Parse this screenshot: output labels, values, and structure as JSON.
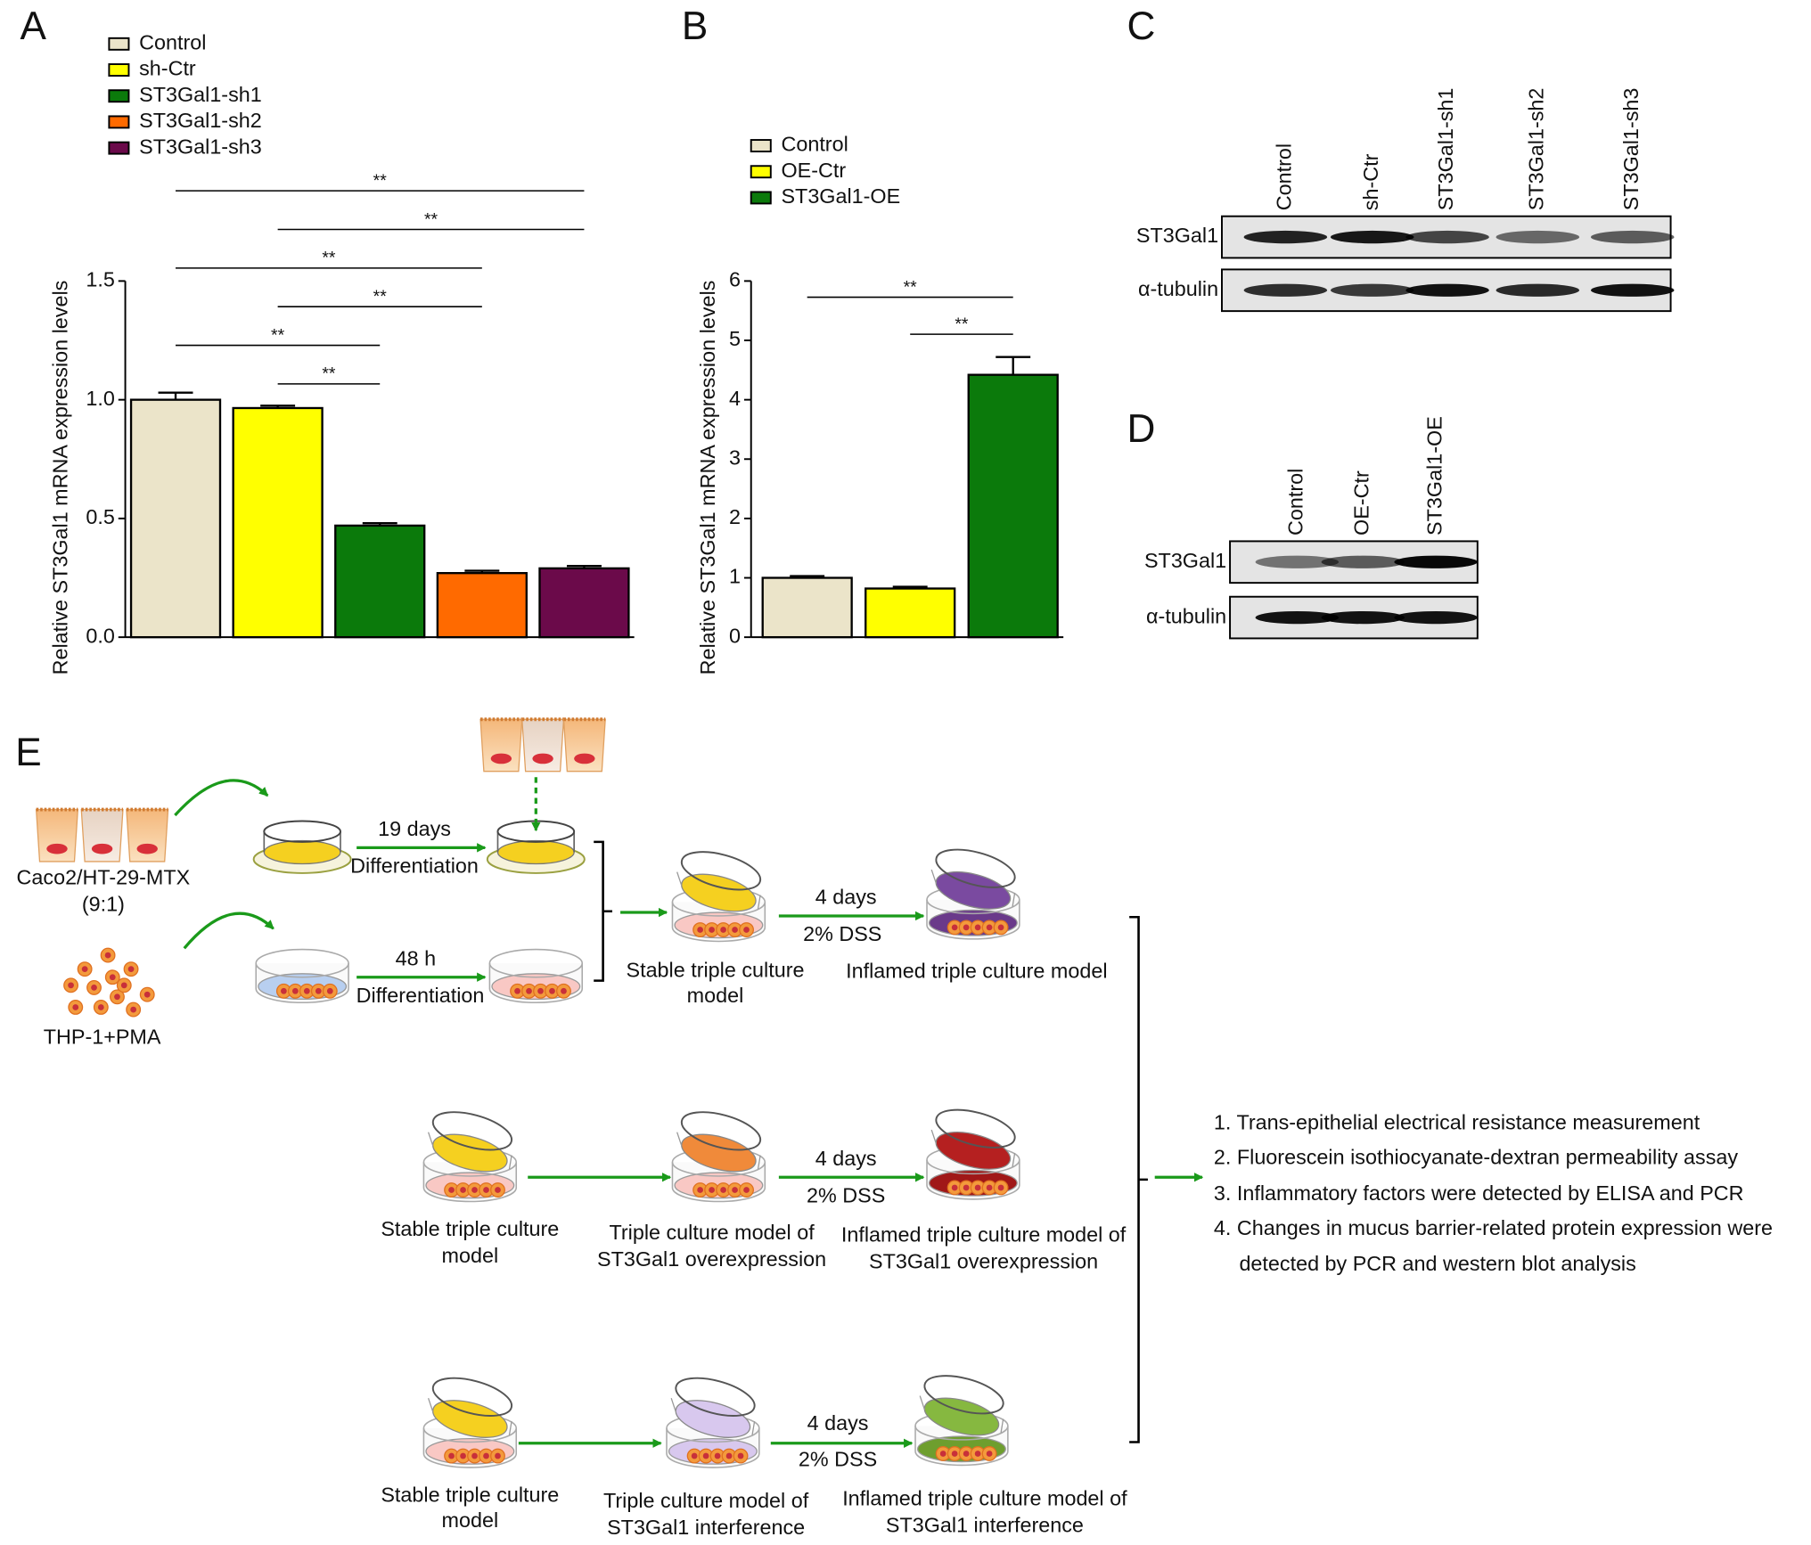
{
  "chart_data": [
    {
      "type": "bar",
      "panel": "A",
      "ylabel": "Relative ST3Gal1 mRNA expression levels",
      "series": [
        {
          "name": "Control",
          "color": "#ebe4c9",
          "values": [
            1.0
          ],
          "errors": [
            0.03
          ]
        },
        {
          "name": "sh-Ctr",
          "color": "#ffff00",
          "values": [
            0.965
          ],
          "errors": [
            0.01
          ]
        },
        {
          "name": "ST3Gal1-sh1",
          "color": "#0b7a0b",
          "values": [
            0.47
          ],
          "errors": [
            0.01
          ]
        },
        {
          "name": "ST3Gal1-sh2",
          "color": "#ff6a00",
          "values": [
            0.27
          ],
          "errors": [
            0.01
          ]
        },
        {
          "name": "ST3Gal1-sh3",
          "color": "#6b0a4a",
          "values": [
            0.29
          ],
          "errors": [
            0.01
          ]
        }
      ],
      "ylim": [
        0,
        1.5
      ],
      "yticks": [
        {
          "value": 0,
          "label": "0.0"
        },
        0.5,
        {
          "value": 1,
          "label": "1.0"
        },
        1.5
      ],
      "significance": [
        {
          "between": [
            1,
            2
          ],
          "label": "**"
        },
        {
          "between": [
            0,
            2
          ],
          "label": "**"
        },
        {
          "between": [
            1,
            3
          ],
          "label": "**"
        },
        {
          "between": [
            0,
            3
          ],
          "label": "**"
        },
        {
          "between": [
            1,
            4
          ],
          "label": "**"
        },
        {
          "between": [
            0,
            4
          ],
          "label": "**"
        }
      ]
    },
    {
      "type": "bar",
      "panel": "B",
      "ylabel": "Relative ST3Gal1 mRNA expression levels",
      "series": [
        {
          "name": "Control",
          "color": "#ebe4c9",
          "values": [
            1.0
          ],
          "errors": [
            0.03
          ]
        },
        {
          "name": "OE-Ctr",
          "color": "#ffff00",
          "values": [
            0.82
          ],
          "errors": [
            0.03
          ]
        },
        {
          "name": "ST3Gal1-OE",
          "color": "#0b7a0b",
          "values": [
            4.42
          ],
          "errors": [
            0.3
          ]
        }
      ],
      "ylim": [
        0,
        6
      ],
      "yticks": [
        0,
        1,
        2,
        3,
        4,
        5,
        6
      ],
      "significance": [
        {
          "between": [
            1,
            2
          ],
          "label": "**"
        },
        {
          "between": [
            0,
            2
          ],
          "label": "**"
        }
      ]
    }
  ],
  "blots": [
    {
      "panel": "C",
      "lanes": [
        "Control",
        "sh-Ctr",
        "ST3Gal1-sh1",
        "ST3Gal1-sh2",
        "ST3Gal1-sh3"
      ],
      "rows": [
        "ST3Gal1",
        "α-tubulin"
      ]
    },
    {
      "panel": "D",
      "lanes": [
        "Control",
        "OE-Ctr",
        "ST3Gal1-OE"
      ],
      "rows": [
        "ST3Gal1",
        "α-tubulin"
      ]
    }
  ],
  "diagram": {
    "panel": "E",
    "texts": [
      "Caco2/HT-29-MTX",
      "(9:1)",
      "THP-1+PMA",
      "19 days",
      "Differentiation",
      "48 h",
      "Differentiation",
      "Stable triple culture",
      "model",
      "4 days",
      "2% DSS",
      "Inflamed triple culture model",
      "Stable triple culture",
      "model",
      "Triple culture model of",
      "ST3Gal1 overexpression",
      "4 days",
      "2% DSS",
      "Inflamed triple culture model of",
      "ST3Gal1 overexpression",
      "Stable triple culture",
      "model",
      "Triple culture model of",
      "ST3Gal1 interference",
      "4 days",
      "2% DSS",
      "Inflamed triple culture model of",
      "ST3Gal1 interference"
    ],
    "outcomes": [
      "1. Trans-epithelial electrical resistance measurement",
      "2. Fluorescein isothiocyanate-dextran permeability assay",
      "3. Inflammatory factors were detected by ELISA and PCR",
      "4. Changes in mucus barrier-related protein expression were",
      "detected by PCR and western blot analysis"
    ]
  }
}
